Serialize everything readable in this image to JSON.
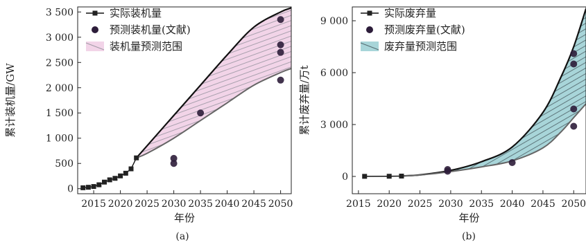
{
  "chart_data": [
    {
      "type": "line",
      "panel_label": "(a)",
      "xlabel": "年份",
      "ylabel": "累计装机量/GW",
      "xlim": [
        2012,
        2052
      ],
      "ylim": [
        -100,
        3600
      ],
      "xticks": [
        2015,
        2020,
        2025,
        2030,
        2035,
        2040,
        2045,
        2050
      ],
      "xtick_labels": [
        "2015",
        "2020",
        "2025",
        "2030",
        "2035",
        "2040",
        "2045",
        "2050"
      ],
      "yticks": [
        0,
        500,
        1000,
        1500,
        2000,
        2500,
        3000,
        3500
      ],
      "ytick_labels": [
        "0",
        "500",
        "1 000",
        "1 500",
        "2 000",
        "2 500",
        "3 000",
        "3 500"
      ],
      "legend": [
        "实际装机量",
        "预测装机量(文献)",
        "装机量预测范围"
      ],
      "legend_position": "top-left",
      "grid": false,
      "actual": {
        "name": "实际装机量",
        "x": [
          2013,
          2014,
          2015,
          2016,
          2017,
          2018,
          2019,
          2020,
          2021,
          2022,
          2023
        ],
        "y": [
          18,
          28,
          43,
          77,
          130,
          175,
          205,
          253,
          306,
          393,
          610
        ]
      },
      "literature": {
        "name": "预测装机量(文献)",
        "x": [
          2030,
          2030,
          2035,
          2050,
          2050,
          2050,
          2050
        ],
        "y": [
          600,
          500,
          1500,
          3350,
          2850,
          2700,
          2150
        ]
      },
      "range": {
        "name": "装机量预测范围",
        "x": [
          2023,
          2025,
          2030,
          2035,
          2040,
          2045,
          2050,
          2052
        ],
        "upper": [
          610,
          850,
          1450,
          2050,
          2650,
          3200,
          3500,
          3580
        ],
        "lower": [
          610,
          700,
          1000,
          1350,
          1700,
          2050,
          2300,
          2380
        ],
        "color": "#f2d4e8",
        "hatch": "#a09aa6"
      }
    },
    {
      "type": "line",
      "panel_label": "(b)",
      "xlabel": "年份",
      "ylabel": "累计废弃量/万t",
      "xlim": [
        2014,
        2052
      ],
      "ylim": [
        -1000,
        9800
      ],
      "xticks": [
        2015,
        2020,
        2025,
        2030,
        2035,
        2040,
        2045,
        2050
      ],
      "xtick_labels": [
        "2015",
        "2020",
        "2025",
        "2030",
        "2035",
        "2040",
        "2045",
        "2050"
      ],
      "yticks": [
        0,
        3000,
        6000,
        9000
      ],
      "ytick_labels": [
        "0",
        "3 000",
        "6 000",
        "9 000"
      ],
      "legend": [
        "实际废弃量",
        "预测废弃量(文献)",
        "废弃量预测范围"
      ],
      "legend_position": "top-left",
      "grid": false,
      "actual": {
        "name": "实际废弃量",
        "x": [
          2016,
          2020,
          2022
        ],
        "y": [
          5,
          10,
          20
        ]
      },
      "literature": {
        "name": "预测废弃量(文献)",
        "x": [
          2029.5,
          2029.5,
          2040,
          2050,
          2050,
          2050,
          2050
        ],
        "y": [
          400,
          300,
          800,
          7100,
          6500,
          3900,
          2900
        ]
      },
      "range": {
        "name": "废弃量预测范围",
        "x": [
          2022,
          2025,
          2030,
          2035,
          2040,
          2045,
          2048,
          2050,
          2052
        ],
        "upper": [
          30,
          90,
          350,
          850,
          1700,
          3700,
          5800,
          7500,
          9700
        ],
        "lower": [
          30,
          80,
          280,
          550,
          900,
          1650,
          2600,
          3400,
          4200
        ],
        "color": "#a8d5d9",
        "hatch": "#556b70"
      }
    }
  ]
}
